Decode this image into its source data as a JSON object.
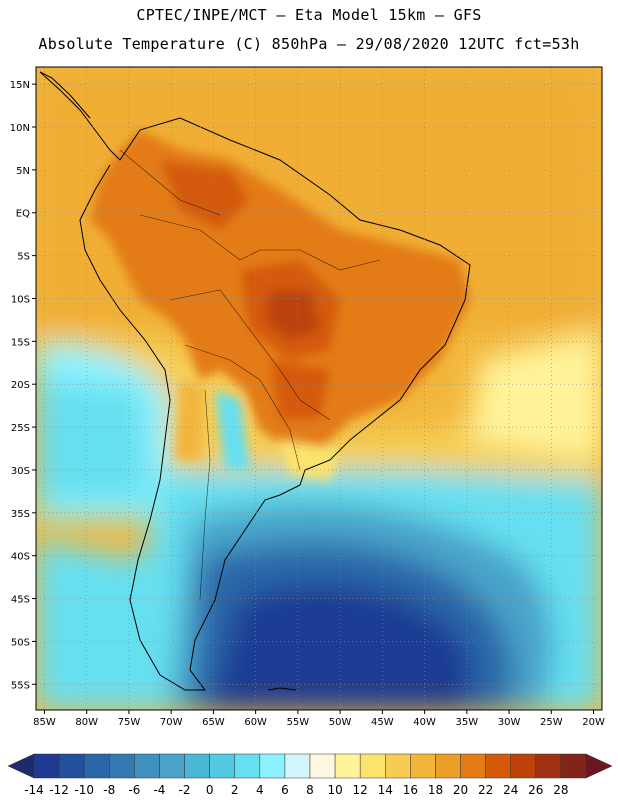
{
  "header": {
    "line1": "CPTEC/INPE/MCT –  Eta Model 15km – GFS",
    "line2": "Absolute Temperature (C) 850hPa – 29/08/2020 12UTC fct=53h"
  },
  "map": {
    "lon_range": [
      -86,
      -19
    ],
    "lat_range": [
      -58,
      17
    ],
    "lat_ticks": [
      {
        "value": 15,
        "label": "15N"
      },
      {
        "value": 10,
        "label": "10N"
      },
      {
        "value": 5,
        "label": "5N"
      },
      {
        "value": 0,
        "label": "EQ"
      },
      {
        "value": -5,
        "label": "5S"
      },
      {
        "value": -10,
        "label": "10S"
      },
      {
        "value": -15,
        "label": "15S"
      },
      {
        "value": -20,
        "label": "20S"
      },
      {
        "value": -25,
        "label": "25S"
      },
      {
        "value": -30,
        "label": "30S"
      },
      {
        "value": -35,
        "label": "35S"
      },
      {
        "value": -40,
        "label": "40S"
      },
      {
        "value": -45,
        "label": "45S"
      },
      {
        "value": -50,
        "label": "50S"
      },
      {
        "value": -55,
        "label": "55S"
      }
    ],
    "lon_ticks": [
      {
        "value": -85,
        "label": "85W"
      },
      {
        "value": -80,
        "label": "80W"
      },
      {
        "value": -75,
        "label": "75W"
      },
      {
        "value": -70,
        "label": "70W"
      },
      {
        "value": -65,
        "label": "65W"
      },
      {
        "value": -60,
        "label": "60W"
      },
      {
        "value": -55,
        "label": "55W"
      },
      {
        "value": -50,
        "label": "50W"
      },
      {
        "value": -45,
        "label": "45W"
      },
      {
        "value": -40,
        "label": "40W"
      },
      {
        "value": -35,
        "label": "35W"
      },
      {
        "value": -30,
        "label": "30W"
      },
      {
        "value": -25,
        "label": "25W"
      },
      {
        "value": -20,
        "label": "20W"
      }
    ]
  },
  "colorbar": {
    "labels": [
      "-14",
      "-12",
      "-10",
      "-8",
      "-6",
      "-4",
      "-2",
      "0",
      "2",
      "4",
      "6",
      "8",
      "10",
      "12",
      "14",
      "16",
      "18",
      "20",
      "22",
      "24",
      "26",
      "28"
    ],
    "colors": [
      "#1f3a93",
      "#23509c",
      "#2a66a8",
      "#3479b3",
      "#3f8fbf",
      "#4aa3c9",
      "#48b8d4",
      "#52cbe0",
      "#66dff0",
      "#8cf2ff",
      "#d2f6fb",
      "#fff8e1",
      "#fff49a",
      "#fbe36d",
      "#f6cd52",
      "#f2b63d",
      "#eb9f28",
      "#e37b16",
      "#d45a0a",
      "#bd420a",
      "#a13112",
      "#83241b"
    ],
    "low_color": "#1f2a6e",
    "high_color": "#6e1522"
  }
}
